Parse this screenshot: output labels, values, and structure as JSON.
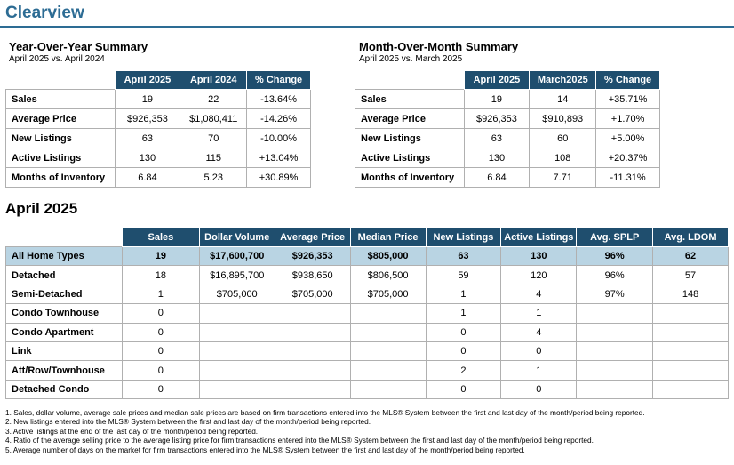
{
  "page_title": "Clearview",
  "yoy": {
    "title": "Year-Over-Year Summary",
    "subtitle": "April 2025 vs. April 2024",
    "headers": [
      "April 2025",
      "April 2024",
      "% Change"
    ],
    "rows": [
      {
        "label": "Sales",
        "values": [
          "19",
          "22",
          "-13.64%"
        ]
      },
      {
        "label": "Average Price",
        "values": [
          "$926,353",
          "$1,080,411",
          "-14.26%"
        ]
      },
      {
        "label": "New Listings",
        "values": [
          "63",
          "70",
          "-10.00%"
        ]
      },
      {
        "label": "Active Listings",
        "values": [
          "130",
          "115",
          "+13.04%"
        ]
      },
      {
        "label": "Months of Inventory",
        "values": [
          "6.84",
          "5.23",
          "+30.89%"
        ]
      }
    ]
  },
  "mom": {
    "title": "Month-Over-Month Summary",
    "subtitle": "April 2025 vs. March 2025",
    "headers": [
      "April 2025",
      "March2025",
      "% Change"
    ],
    "rows": [
      {
        "label": "Sales",
        "values": [
          "19",
          "14",
          "+35.71%"
        ]
      },
      {
        "label": "Average Price",
        "values": [
          "$926,353",
          "$910,893",
          "+1.70%"
        ]
      },
      {
        "label": "New Listings",
        "values": [
          "63",
          "60",
          "+5.00%"
        ]
      },
      {
        "label": "Active Listings",
        "values": [
          "130",
          "108",
          "+20.37%"
        ]
      },
      {
        "label": "Months of Inventory",
        "values": [
          "6.84",
          "7.71",
          "-11.31%"
        ]
      }
    ]
  },
  "april": {
    "heading": "April 2025",
    "headers": [
      "Sales",
      "Dollar Volume",
      "Average Price",
      "Median Price",
      "New Listings",
      "Active Listings",
      "Avg. SPLP",
      "Avg. LDOM"
    ],
    "rows": [
      {
        "label": "All Home Types",
        "values": [
          "19",
          "$17,600,700",
          "$926,353",
          "$805,000",
          "63",
          "130",
          "96%",
          "62"
        ]
      },
      {
        "label": "Detached",
        "values": [
          "18",
          "$16,895,700",
          "$938,650",
          "$806,500",
          "59",
          "120",
          "96%",
          "57"
        ]
      },
      {
        "label": "Semi-Detached",
        "values": [
          "1",
          "$705,000",
          "$705,000",
          "$705,000",
          "1",
          "4",
          "97%",
          "148"
        ]
      },
      {
        "label": "Condo Townhouse",
        "values": [
          "0",
          "",
          "",
          "",
          "1",
          "1",
          "",
          ""
        ]
      },
      {
        "label": "Condo Apartment",
        "values": [
          "0",
          "",
          "",
          "",
          "0",
          "4",
          "",
          ""
        ]
      },
      {
        "label": "Link",
        "values": [
          "0",
          "",
          "",
          "",
          "0",
          "0",
          "",
          ""
        ]
      },
      {
        "label": "Att/Row/Townhouse",
        "values": [
          "0",
          "",
          "",
          "",
          "2",
          "1",
          "",
          ""
        ]
      },
      {
        "label": "Detached Condo",
        "values": [
          "0",
          "",
          "",
          "",
          "0",
          "0",
          "",
          ""
        ]
      }
    ]
  },
  "notes": [
    "1. Sales, dollar volume, average sale prices and median sale prices are based on firm transactions entered into the MLS® System between the first and last day of the month/period being reported.",
    "2. New listings entered into the MLS® System between the first and last day of the month/period being reported.",
    "3. Active listings at the end of the last day of the month/period being reported.",
    "4. Ratio of the average selling price to the average listing price for firm transactions entered into the MLS® System between the first and last day of the month/period being reported.",
    "5. Average number of days on the market for firm transactions entered into the MLS® System between the first and last day of the month/period being reported."
  ]
}
